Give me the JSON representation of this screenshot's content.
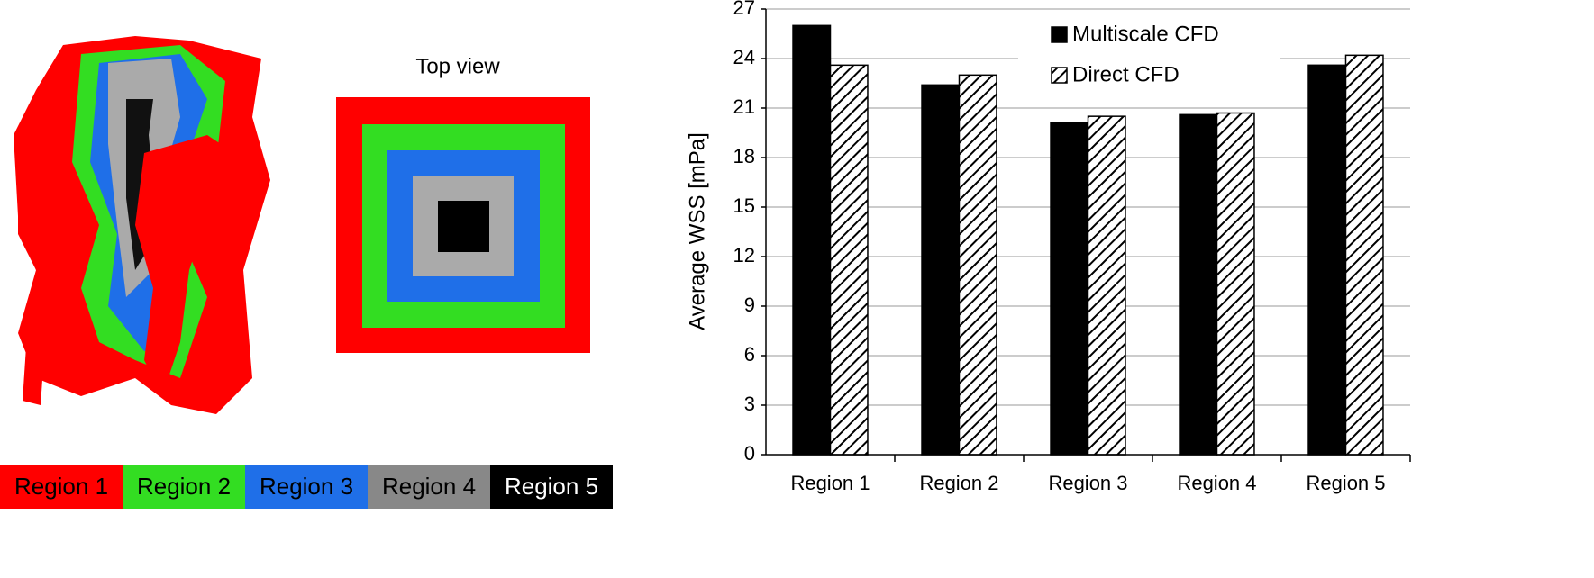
{
  "figure": {
    "view_label": "Top view",
    "regions": [
      {
        "label": "Region 1",
        "color": "#ff0000",
        "text_color": "#000000"
      },
      {
        "label": "Region 2",
        "color": "#33dd22",
        "text_color": "#000000"
      },
      {
        "label": "Region 3",
        "color": "#1f6fe8",
        "text_color": "#000000"
      },
      {
        "label": "Region 4",
        "color": "#888888",
        "text_color": "#000000"
      },
      {
        "label": "Region 5",
        "color": "#000000",
        "text_color": "#ffffff"
      }
    ]
  },
  "chart_data": {
    "type": "bar",
    "ylabel": "Average WSS [mPa]",
    "categories": [
      "Region 1",
      "Region 2",
      "Region 3",
      "Region 4",
      "Region 5"
    ],
    "series": [
      {
        "name": "Multiscale CFD",
        "color": "#000000",
        "hatch": false,
        "values": [
          26.0,
          22.4,
          20.1,
          20.6,
          23.6
        ]
      },
      {
        "name": "Direct CFD",
        "color": "#000000",
        "hatch": true,
        "values": [
          23.6,
          23.0,
          20.5,
          20.7,
          24.2
        ]
      }
    ],
    "ylim": [
      0,
      27
    ],
    "yticks": [
      0,
      3,
      6,
      9,
      12,
      15,
      18,
      21,
      24,
      27
    ],
    "grid": true,
    "legend": "top"
  }
}
